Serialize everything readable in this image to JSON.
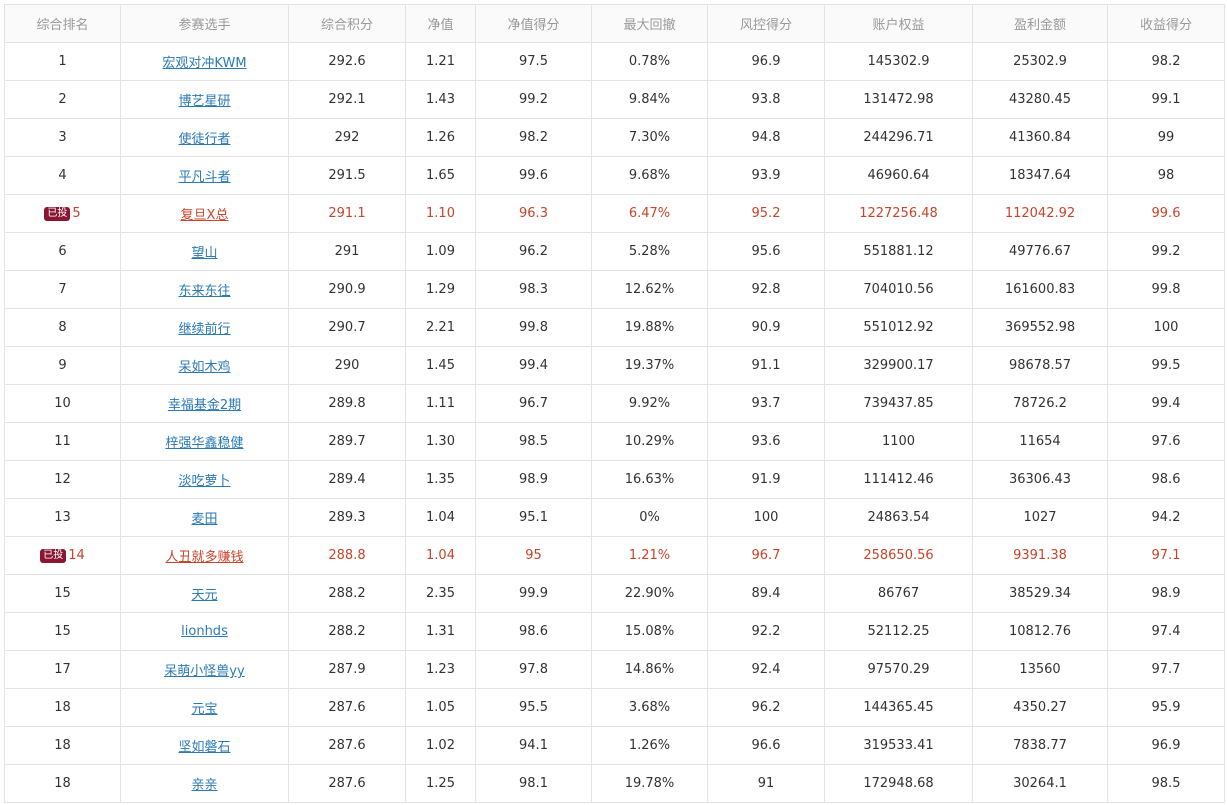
{
  "columns": [
    "综合排名",
    "参赛选手",
    "综合积分",
    "净值",
    "净值得分",
    "最大回撤",
    "风控得分",
    "账户权益",
    "盈利金额",
    "收益得分"
  ],
  "badge_label": "已投",
  "colors": {
    "highlight_text": "#c8442a",
    "badge_bg": "#8b1632",
    "link": "#2a7ab6",
    "header_text": "#999999"
  },
  "rows": [
    {
      "rank": "1",
      "name": "宏观对冲KWM",
      "score": "292.6",
      "nav": "1.21",
      "nav_score": "97.5",
      "max_dd": "0.78%",
      "risk_score": "96.9",
      "equity": "145302.9",
      "profit": "25302.9",
      "return_score": "98.2",
      "invested": false
    },
    {
      "rank": "2",
      "name": "博艺星研",
      "score": "292.1",
      "nav": "1.43",
      "nav_score": "99.2",
      "max_dd": "9.84%",
      "risk_score": "93.8",
      "equity": "131472.98",
      "profit": "43280.45",
      "return_score": "99.1",
      "invested": false
    },
    {
      "rank": "3",
      "name": "使徒行者",
      "score": "292",
      "nav": "1.26",
      "nav_score": "98.2",
      "max_dd": "7.30%",
      "risk_score": "94.8",
      "equity": "244296.71",
      "profit": "41360.84",
      "return_score": "99",
      "invested": false
    },
    {
      "rank": "4",
      "name": "平凡斗者",
      "score": "291.5",
      "nav": "1.65",
      "nav_score": "99.6",
      "max_dd": "9.68%",
      "risk_score": "93.9",
      "equity": "46960.64",
      "profit": "18347.64",
      "return_score": "98",
      "invested": false
    },
    {
      "rank": "5",
      "name": "复旦X总",
      "score": "291.1",
      "nav": "1.10",
      "nav_score": "96.3",
      "max_dd": "6.47%",
      "risk_score": "95.2",
      "equity": "1227256.48",
      "profit": "112042.92",
      "return_score": "99.6",
      "invested": true
    },
    {
      "rank": "6",
      "name": "望山",
      "score": "291",
      "nav": "1.09",
      "nav_score": "96.2",
      "max_dd": "5.28%",
      "risk_score": "95.6",
      "equity": "551881.12",
      "profit": "49776.67",
      "return_score": "99.2",
      "invested": false
    },
    {
      "rank": "7",
      "name": "东来东往",
      "score": "290.9",
      "nav": "1.29",
      "nav_score": "98.3",
      "max_dd": "12.62%",
      "risk_score": "92.8",
      "equity": "704010.56",
      "profit": "161600.83",
      "return_score": "99.8",
      "invested": false
    },
    {
      "rank": "8",
      "name": "继续前行",
      "score": "290.7",
      "nav": "2.21",
      "nav_score": "99.8",
      "max_dd": "19.88%",
      "risk_score": "90.9",
      "equity": "551012.92",
      "profit": "369552.98",
      "return_score": "100",
      "invested": false
    },
    {
      "rank": "9",
      "name": "呆如木鸡",
      "score": "290",
      "nav": "1.45",
      "nav_score": "99.4",
      "max_dd": "19.37%",
      "risk_score": "91.1",
      "equity": "329900.17",
      "profit": "98678.57",
      "return_score": "99.5",
      "invested": false
    },
    {
      "rank": "10",
      "name": "幸福基金2期",
      "score": "289.8",
      "nav": "1.11",
      "nav_score": "96.7",
      "max_dd": "9.92%",
      "risk_score": "93.7",
      "equity": "739437.85",
      "profit": "78726.2",
      "return_score": "99.4",
      "invested": false
    },
    {
      "rank": "11",
      "name": "梓强华鑫稳健",
      "score": "289.7",
      "nav": "1.30",
      "nav_score": "98.5",
      "max_dd": "10.29%",
      "risk_score": "93.6",
      "equity": "1100",
      "profit": "11654",
      "return_score": "97.6",
      "invested": false
    },
    {
      "rank": "12",
      "name": "淡吃萝卜",
      "score": "289.4",
      "nav": "1.35",
      "nav_score": "98.9",
      "max_dd": "16.63%",
      "risk_score": "91.9",
      "equity": "111412.46",
      "profit": "36306.43",
      "return_score": "98.6",
      "invested": false
    },
    {
      "rank": "13",
      "name": "麦田",
      "score": "289.3",
      "nav": "1.04",
      "nav_score": "95.1",
      "max_dd": "0%",
      "risk_score": "100",
      "equity": "24863.54",
      "profit": "1027",
      "return_score": "94.2",
      "invested": false
    },
    {
      "rank": "14",
      "name": "人丑就多赚钱",
      "score": "288.8",
      "nav": "1.04",
      "nav_score": "95",
      "max_dd": "1.21%",
      "risk_score": "96.7",
      "equity": "258650.56",
      "profit": "9391.38",
      "return_score": "97.1",
      "invested": true
    },
    {
      "rank": "15",
      "name": "天元",
      "score": "288.2",
      "nav": "2.35",
      "nav_score": "99.9",
      "max_dd": "22.90%",
      "risk_score": "89.4",
      "equity": "86767",
      "profit": "38529.34",
      "return_score": "98.9",
      "invested": false
    },
    {
      "rank": "15",
      "name": "lionhds",
      "score": "288.2",
      "nav": "1.31",
      "nav_score": "98.6",
      "max_dd": "15.08%",
      "risk_score": "92.2",
      "equity": "52112.25",
      "profit": "10812.76",
      "return_score": "97.4",
      "invested": false
    },
    {
      "rank": "17",
      "name": "呆萌小怪兽yy",
      "score": "287.9",
      "nav": "1.23",
      "nav_score": "97.8",
      "max_dd": "14.86%",
      "risk_score": "92.4",
      "equity": "97570.29",
      "profit": "13560",
      "return_score": "97.7",
      "invested": false
    },
    {
      "rank": "18",
      "name": "元宝",
      "score": "287.6",
      "nav": "1.05",
      "nav_score": "95.5",
      "max_dd": "3.68%",
      "risk_score": "96.2",
      "equity": "144365.45",
      "profit": "4350.27",
      "return_score": "95.9",
      "invested": false
    },
    {
      "rank": "18",
      "name": "坚如磐石",
      "score": "287.6",
      "nav": "1.02",
      "nav_score": "94.1",
      "max_dd": "1.26%",
      "risk_score": "96.6",
      "equity": "319533.41",
      "profit": "7838.77",
      "return_score": "96.9",
      "invested": false
    },
    {
      "rank": "18",
      "name": "亲亲",
      "score": "287.6",
      "nav": "1.25",
      "nav_score": "98.1",
      "max_dd": "19.78%",
      "risk_score": "91",
      "equity": "172948.68",
      "profit": "30264.1",
      "return_score": "98.5",
      "invested": false
    }
  ]
}
